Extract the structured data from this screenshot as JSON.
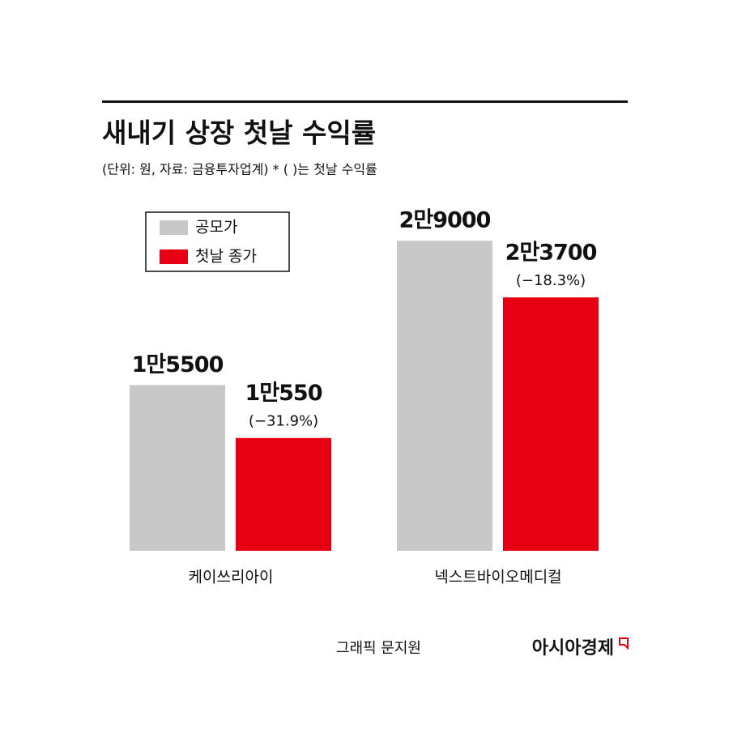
{
  "chart_data": {
    "type": "bar",
    "title": "새내기 상장 첫날 수익률",
    "subtitle": "(단위: 원, 자료: 금융투자업계)  * ( )는 첫날 수익률",
    "categories": [
      "케이쓰리아이",
      "넥스트바이오메디컬"
    ],
    "series": [
      {
        "name": "공모가",
        "color": "#c8c8c9",
        "values": [
          15500,
          29000
        ],
        "value_labels": [
          "1만5500",
          "2만9000"
        ]
      },
      {
        "name": "첫날 종가",
        "color": "#e60012",
        "values": [
          10550,
          23700
        ],
        "value_labels": [
          "1만550",
          "2만3700"
        ],
        "change_labels": [
          "(−31.9%)",
          "(−18.3%)"
        ]
      }
    ],
    "ylim": [
      0,
      30000
    ],
    "credit": "그래픽 문지원",
    "brand": "아시아경제"
  }
}
